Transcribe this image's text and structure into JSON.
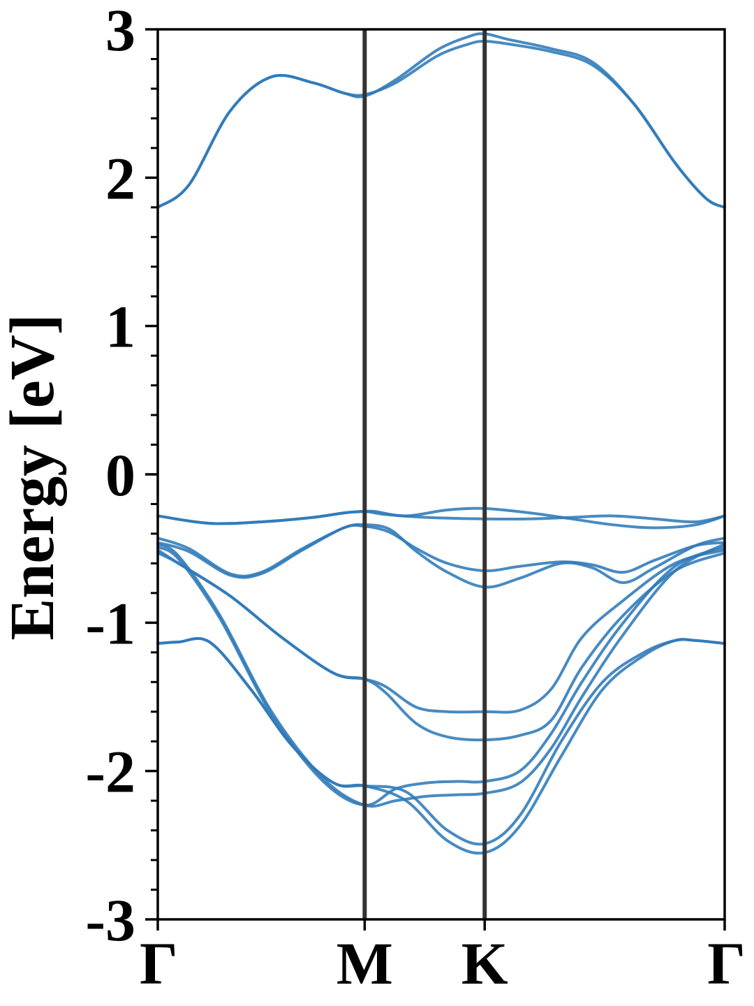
{
  "chart_data": {
    "type": "line",
    "title": "",
    "xlabel": "",
    "ylabel": "Energy [eV]",
    "ylim": [
      -3,
      3
    ],
    "yticks": [
      -3,
      -2,
      -1,
      0,
      1,
      2,
      3
    ],
    "ytick_labels": [
      "-3",
      "-2",
      "-1",
      "0",
      "1",
      "2",
      "3"
    ],
    "y_minor_step": 0.2,
    "xlim": [
      0,
      2.74
    ],
    "high_symmetry_points": [
      {
        "label": "Γ",
        "x": 0
      },
      {
        "label": "M",
        "x": 1.0
      },
      {
        "label": "K",
        "x": 1.58
      },
      {
        "label": "Γ",
        "x": 2.74
      }
    ],
    "grid": false,
    "legend": "none",
    "colors": {
      "band": "#2f7ab8",
      "symmetry_line": "#333333",
      "frame": "#000000"
    },
    "series": [
      {
        "x": [
          0,
          0.15,
          0.35,
          0.55,
          0.75,
          0.9,
          1.0,
          1.15,
          1.35,
          1.5,
          1.58,
          1.7,
          1.9,
          2.1,
          2.3,
          2.5,
          2.65,
          2.74
        ],
        "y": [
          1.8,
          1.95,
          2.45,
          2.68,
          2.64,
          2.57,
          2.55,
          2.66,
          2.86,
          2.95,
          2.97,
          2.93,
          2.87,
          2.78,
          2.5,
          2.1,
          1.86,
          1.8
        ]
      },
      {
        "x": [
          0,
          0.15,
          0.35,
          0.55,
          0.75,
          0.9,
          1.0,
          1.15,
          1.35,
          1.5,
          1.58,
          1.7,
          1.9,
          2.1,
          2.3,
          2.5,
          2.65,
          2.74
        ],
        "y": [
          1.8,
          1.95,
          2.45,
          2.68,
          2.64,
          2.57,
          2.56,
          2.64,
          2.82,
          2.9,
          2.92,
          2.9,
          2.85,
          2.76,
          2.5,
          2.1,
          1.86,
          1.8
        ]
      },
      {
        "x": [
          0,
          0.25,
          0.5,
          0.75,
          0.9,
          1.0,
          1.05,
          1.2,
          1.4,
          1.58,
          1.8,
          2.0,
          2.2,
          2.4,
          2.6,
          2.74
        ],
        "y": [
          -0.28,
          -0.33,
          -0.32,
          -0.29,
          -0.26,
          -0.25,
          -0.25,
          -0.28,
          -0.24,
          -0.23,
          -0.26,
          -0.3,
          -0.34,
          -0.36,
          -0.34,
          -0.28
        ]
      },
      {
        "x": [
          0,
          0.25,
          0.5,
          0.75,
          0.9,
          1.0,
          1.1,
          1.3,
          1.58,
          1.8,
          2.0,
          2.2,
          2.4,
          2.6,
          2.74
        ],
        "y": [
          -0.28,
          -0.33,
          -0.32,
          -0.29,
          -0.26,
          -0.25,
          -0.27,
          -0.29,
          -0.3,
          -0.3,
          -0.29,
          -0.28,
          -0.3,
          -0.32,
          -0.28
        ]
      },
      {
        "x": [
          0,
          0.15,
          0.35,
          0.5,
          0.7,
          0.9,
          1.0,
          1.12,
          1.25,
          1.4,
          1.58,
          1.75,
          1.95,
          2.1,
          2.25,
          2.4,
          2.6,
          2.74
        ],
        "y": [
          -0.43,
          -0.5,
          -0.67,
          -0.66,
          -0.5,
          -0.36,
          -0.34,
          -0.37,
          -0.52,
          -0.66,
          -0.76,
          -0.7,
          -0.6,
          -0.63,
          -0.73,
          -0.63,
          -0.48,
          -0.43
        ]
      },
      {
        "x": [
          0,
          0.15,
          0.35,
          0.5,
          0.7,
          0.9,
          1.0,
          1.12,
          1.25,
          1.4,
          1.58,
          1.75,
          1.95,
          2.1,
          2.25,
          2.4,
          2.6,
          2.74
        ],
        "y": [
          -0.46,
          -0.52,
          -0.68,
          -0.67,
          -0.51,
          -0.36,
          -0.35,
          -0.39,
          -0.5,
          -0.6,
          -0.65,
          -0.62,
          -0.59,
          -0.61,
          -0.66,
          -0.58,
          -0.48,
          -0.46
        ]
      },
      {
        "x": [
          0,
          0.1,
          0.35,
          0.6,
          0.85,
          1.0,
          1.1,
          1.25,
          1.4,
          1.58,
          1.75,
          1.9,
          2.05,
          2.25,
          2.5,
          2.74
        ],
        "y": [
          -0.51,
          -0.6,
          -0.82,
          -1.1,
          -1.34,
          -1.38,
          -1.43,
          -1.57,
          -1.6,
          -1.6,
          -1.59,
          -1.45,
          -1.1,
          -0.85,
          -0.6,
          -0.51
        ]
      },
      {
        "x": [
          0,
          0.1,
          0.35,
          0.6,
          0.85,
          1.0,
          1.1,
          1.25,
          1.4,
          1.58,
          1.75,
          1.9,
          2.05,
          2.25,
          2.5,
          2.74
        ],
        "y": [
          -0.53,
          -0.6,
          -0.82,
          -1.1,
          -1.34,
          -1.38,
          -1.47,
          -1.68,
          -1.77,
          -1.79,
          -1.76,
          -1.66,
          -1.3,
          -0.95,
          -0.65,
          -0.53
        ]
      },
      {
        "x": [
          0,
          0.1,
          0.25,
          0.45,
          0.65,
          0.85,
          1.0,
          1.2,
          1.4,
          1.58,
          1.75,
          1.95,
          2.15,
          2.35,
          2.5,
          2.6,
          2.74
        ],
        "y": [
          -1.14,
          -1.13,
          -1.13,
          -1.45,
          -1.83,
          -2.08,
          -2.1,
          -2.14,
          -2.4,
          -2.49,
          -2.3,
          -1.8,
          -1.4,
          -1.2,
          -1.12,
          -1.12,
          -1.14
        ]
      },
      {
        "x": [
          0,
          0.1,
          0.25,
          0.45,
          0.65,
          0.85,
          1.0,
          1.2,
          1.4,
          1.58,
          1.75,
          1.95,
          2.15,
          2.35,
          2.5,
          2.6,
          2.74
        ],
        "y": [
          -1.14,
          -1.13,
          -1.13,
          -1.45,
          -1.83,
          -2.08,
          -2.1,
          -2.2,
          -2.47,
          -2.55,
          -2.37,
          -1.9,
          -1.45,
          -1.22,
          -1.12,
          -1.12,
          -1.14
        ]
      },
      {
        "x": [
          0,
          0.1,
          0.3,
          0.55,
          0.8,
          1.0,
          1.15,
          1.3,
          1.45,
          1.58,
          1.75,
          1.9,
          2.05,
          2.25,
          2.5,
          2.74
        ],
        "y": [
          -0.47,
          -0.55,
          -0.95,
          -1.6,
          -2.05,
          -2.23,
          -2.2,
          -2.17,
          -2.16,
          -2.15,
          -2.08,
          -1.85,
          -1.5,
          -1.08,
          -0.65,
          -0.47
        ]
      },
      {
        "x": [
          0,
          0.1,
          0.3,
          0.55,
          0.8,
          1.0,
          1.15,
          1.3,
          1.45,
          1.58,
          1.75,
          1.9,
          2.05,
          2.25,
          2.5,
          2.74
        ],
        "y": [
          -0.49,
          -0.57,
          -0.97,
          -1.62,
          -2.07,
          -2.23,
          -2.12,
          -2.08,
          -2.07,
          -2.07,
          -2.0,
          -1.75,
          -1.4,
          -1.0,
          -0.62,
          -0.49
        ]
      }
    ]
  }
}
